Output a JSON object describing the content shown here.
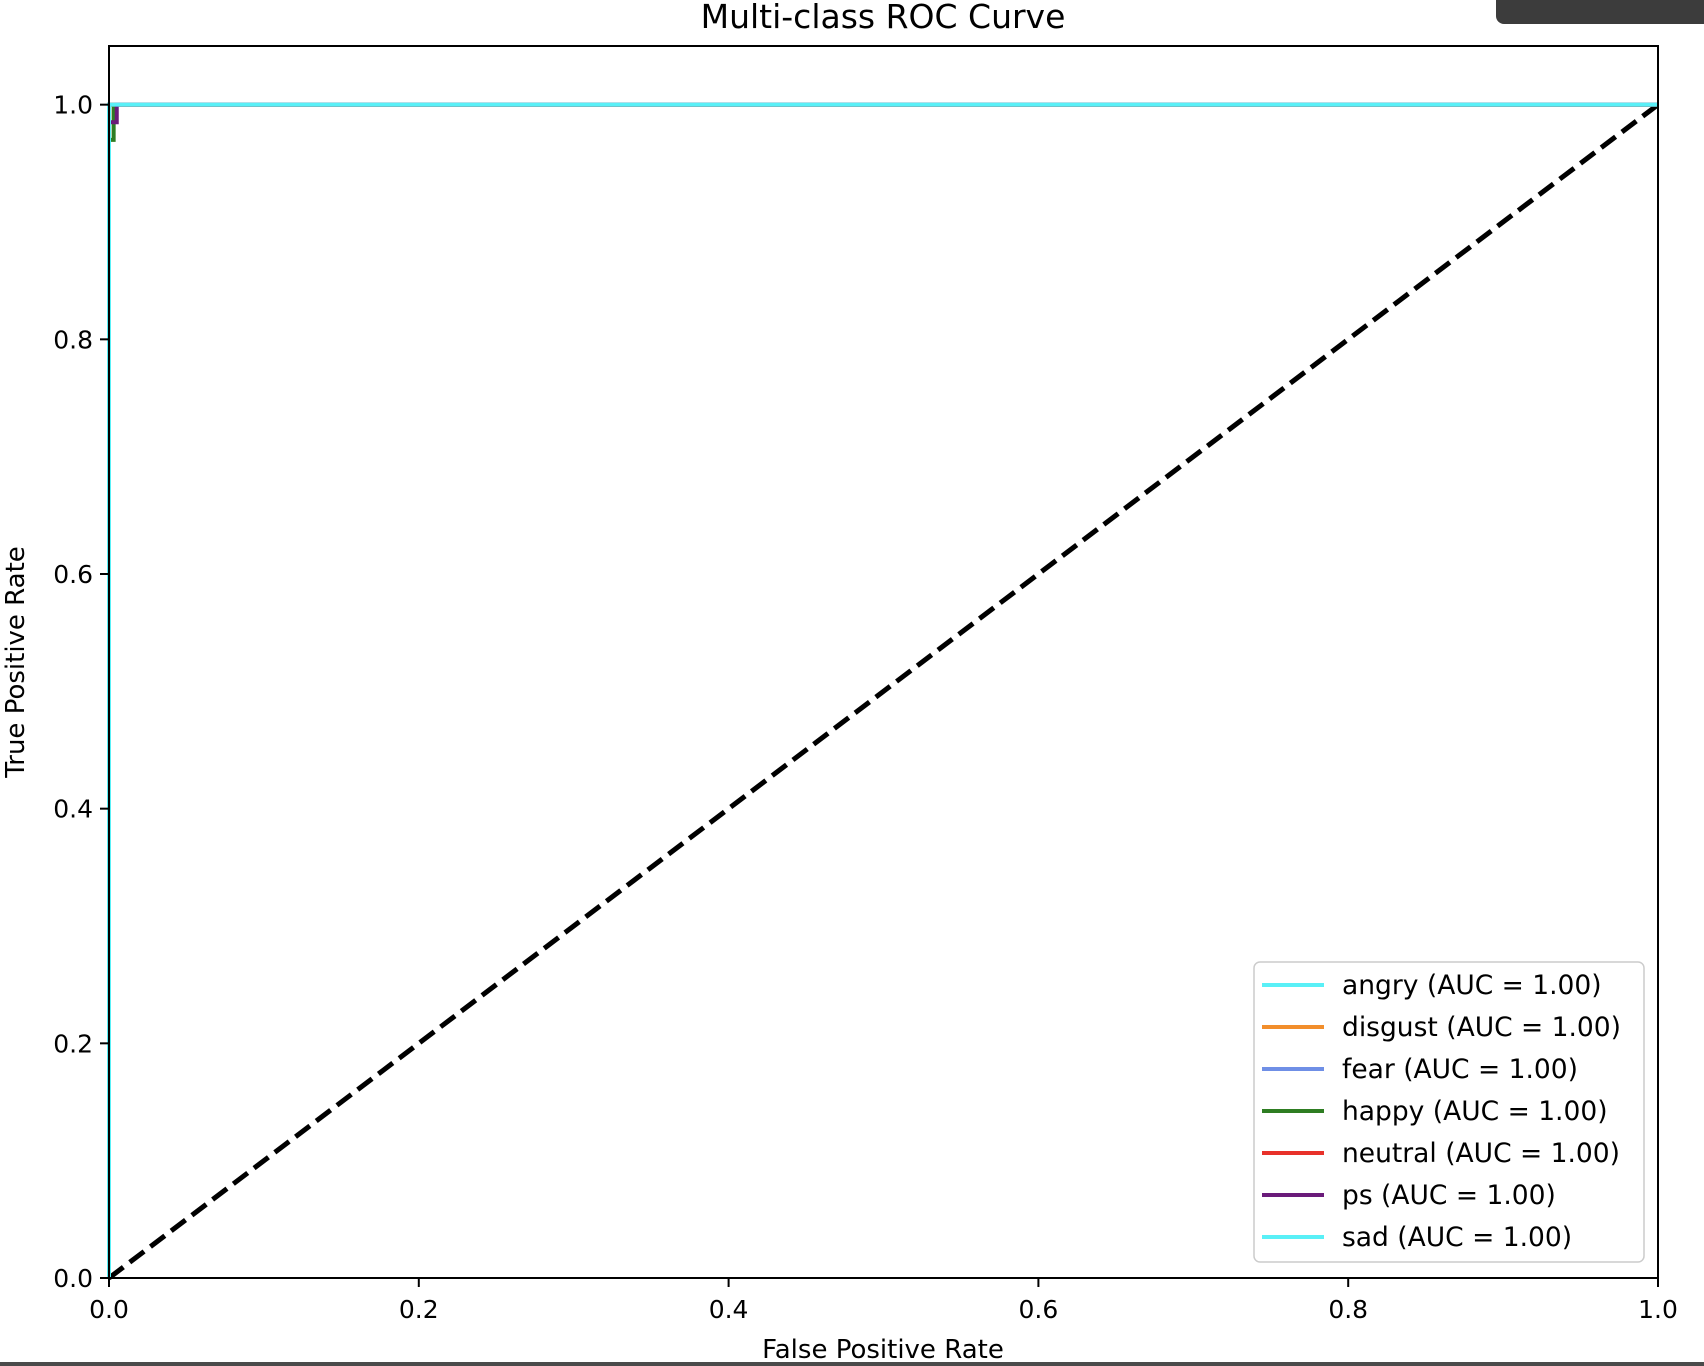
{
  "chart_data": {
    "type": "line",
    "title": "Multi-class ROC Curve",
    "xlabel": "False Positive Rate",
    "ylabel": "True Positive Rate",
    "xlim": [
      0.0,
      1.0
    ],
    "ylim": [
      0.0,
      1.05
    ],
    "xticks": [
      "0.0",
      "0.2",
      "0.4",
      "0.6",
      "0.8",
      "1.0"
    ],
    "yticks": [
      "0.0",
      "0.2",
      "0.4",
      "0.6",
      "0.8",
      "1.0"
    ],
    "xtick_values": [
      0.0,
      0.2,
      0.4,
      0.6,
      0.8,
      1.0
    ],
    "ytick_values": [
      0.0,
      0.2,
      0.4,
      0.6,
      0.8,
      1.0
    ],
    "grid": false,
    "legend_position": "lower-right",
    "series": [
      {
        "name": "angry (AUC = 1.00)",
        "color": "#59f0f7",
        "x": [
          0.0,
          0.0,
          1.0
        ],
        "y": [
          0.0,
          1.0,
          1.0
        ]
      },
      {
        "name": "disgust (AUC = 1.00)",
        "color": "#f28e2b",
        "x": [
          0.0,
          0.0,
          1.0
        ],
        "y": [
          0.0,
          1.0,
          1.0
        ]
      },
      {
        "name": "fear (AUC = 1.00)",
        "color": "#6f8fe6",
        "x": [
          0.0,
          0.0,
          1.0
        ],
        "y": [
          0.0,
          1.0,
          1.0
        ]
      },
      {
        "name": "happy (AUC = 1.00)",
        "color": "#2e7d22",
        "x": [
          0.0,
          0.0,
          0.003,
          0.003,
          1.0
        ],
        "y": [
          0.0,
          0.97,
          0.97,
          1.0,
          1.0
        ]
      },
      {
        "name": "neutral (AUC = 1.00)",
        "color": "#e8312a",
        "x": [
          0.0,
          0.0,
          1.0
        ],
        "y": [
          0.0,
          1.0,
          1.0
        ]
      },
      {
        "name": "ps (AUC = 1.00)",
        "color": "#6a1b7a",
        "x": [
          0.0,
          0.0,
          0.005,
          0.005,
          1.0
        ],
        "y": [
          0.0,
          0.985,
          0.985,
          1.0,
          1.0
        ]
      },
      {
        "name": "sad (AUC = 1.00)",
        "color": "#59f0f7",
        "x": [
          0.0,
          0.0,
          1.0
        ],
        "y": [
          0.0,
          1.0,
          1.0
        ]
      }
    ],
    "reference_line": {
      "x": [
        0.0,
        1.0
      ],
      "y": [
        0.0,
        1.0
      ],
      "color": "#000000",
      "style": "dashed"
    }
  }
}
